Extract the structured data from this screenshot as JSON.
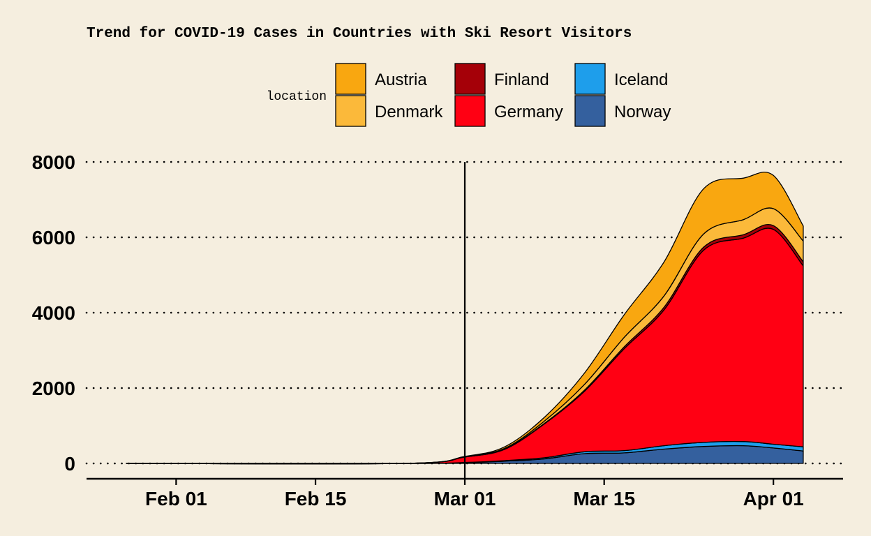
{
  "chart_data": {
    "type": "area",
    "stacked": true,
    "title": "Trend for COVID-19 Cases in Countries with Ski Resort Visitors",
    "xlabel": "",
    "ylabel": "",
    "legend_title": "location",
    "legend_position": "top",
    "grid": "horizontal dotted",
    "ylim": [
      0,
      8000
    ],
    "yticks": [
      0,
      2000,
      4000,
      6000,
      8000
    ],
    "xlim": [
      "2020-01-23",
      "2020-04-08"
    ],
    "xticks": [
      {
        "date": "2020-02-01",
        "label": "Feb 01"
      },
      {
        "date": "2020-02-15",
        "label": "Feb 15"
      },
      {
        "date": "2020-03-01",
        "label": "Mar 01"
      },
      {
        "date": "2020-03-15",
        "label": "Mar 15"
      },
      {
        "date": "2020-04-01",
        "label": "Apr 01"
      }
    ],
    "vline_date": "2020-03-01",
    "x": [
      "2020-01-27",
      "2020-02-24",
      "2020-03-01",
      "2020-03-05",
      "2020-03-09",
      "2020-03-13",
      "2020-03-17",
      "2020-03-21",
      "2020-03-25",
      "2020-03-29",
      "2020-04-01",
      "2020-04-04"
    ],
    "series": [
      {
        "name": "Norway",
        "color": "#34609E",
        "values": [
          0,
          0,
          20,
          60,
          120,
          260,
          280,
          380,
          450,
          470,
          410,
          330
        ]
      },
      {
        "name": "Iceland",
        "color": "#1E9EEB",
        "values": [
          0,
          0,
          5,
          15,
          30,
          50,
          60,
          90,
          110,
          110,
          100,
          110
        ]
      },
      {
        "name": "Germany",
        "color": "#FF0013",
        "values": [
          0,
          0,
          145,
          300,
          900,
          1600,
          2700,
          3600,
          5100,
          5400,
          5700,
          4800
        ]
      },
      {
        "name": "Finland",
        "color": "#A50008",
        "values": [
          0,
          0,
          2,
          5,
          15,
          30,
          50,
          70,
          80,
          90,
          100,
          110
        ]
      },
      {
        "name": "Denmark",
        "color": "#FBB93A",
        "values": [
          0,
          0,
          5,
          20,
          60,
          150,
          250,
          300,
          350,
          400,
          450,
          550
        ]
      },
      {
        "name": "Austria",
        "color": "#F9A710",
        "values": [
          0,
          0,
          10,
          40,
          100,
          300,
          600,
          900,
          1200,
          1100,
          880,
          400
        ]
      }
    ]
  }
}
